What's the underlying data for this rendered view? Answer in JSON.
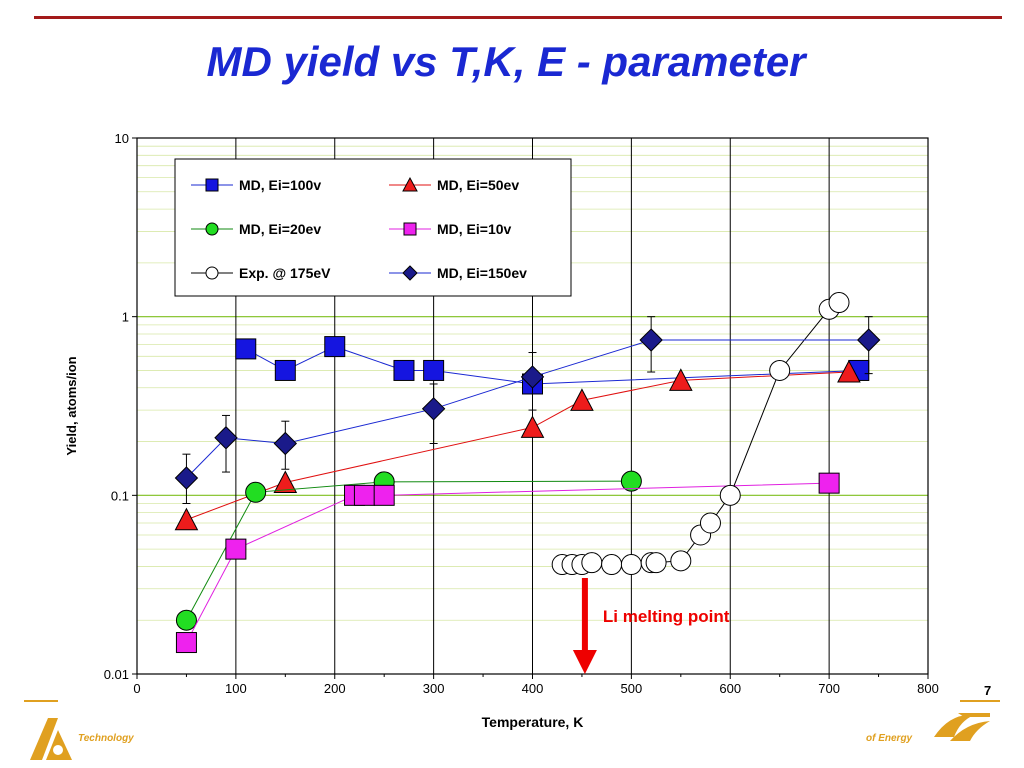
{
  "slide": {
    "title": "MD yield vs T,K, E - parameter",
    "page_number": "7",
    "footer_left_text": "Technology",
    "footer_right_text": "of Energy"
  },
  "colors": {
    "title": "#1a28d2",
    "rule": "#a31a1a",
    "footer_accent": "#e0a020",
    "gridline_horizontal": "#9acd32",
    "arrow": "#ee0000"
  },
  "chart_data": {
    "type": "scatter",
    "xlabel": "Temperature, K",
    "ylabel": "Yield, atoms/ion",
    "xlim": [
      0,
      800
    ],
    "ylim": [
      0.01,
      10
    ],
    "y_scale": "log",
    "x_ticks": [
      0,
      100,
      200,
      300,
      400,
      500,
      600,
      700,
      800
    ],
    "y_ticks": [
      0.01,
      0.1,
      1,
      10
    ],
    "y_tick_labels": [
      "0.01",
      "0.1",
      "1",
      "10"
    ],
    "grid": "vertical major lines every 100 K; horizontal minor gridlines at log steps",
    "legend_position": "top-left inside plot",
    "series": [
      {
        "name": "MD, Ei=100v",
        "marker": "square",
        "color": "#1515e0",
        "line_color": "#1a28d2",
        "x": [
          110,
          150,
          200,
          270,
          300,
          400,
          730
        ],
        "y": [
          0.66,
          0.5,
          0.68,
          0.5,
          0.5,
          0.42,
          0.5
        ]
      },
      {
        "name": "MD, Ei=50ev",
        "marker": "triangle",
        "color": "#ee1c1c",
        "line_color": "#e01010",
        "x": [
          50,
          150,
          400,
          450,
          550,
          720
        ],
        "y": [
          0.073,
          0.118,
          0.24,
          0.34,
          0.44,
          0.49
        ]
      },
      {
        "name": "MD, Ei=20ev",
        "marker": "circle",
        "color": "#22dd22",
        "line_color": "#108a10",
        "x": [
          50,
          120,
          250,
          500
        ],
        "y": [
          0.02,
          0.104,
          0.119,
          0.12
        ]
      },
      {
        "name": "MD, Ei=10v",
        "marker": "square",
        "color": "#ee22ee",
        "line_color": "#e020e0",
        "x": [
          50,
          100,
          220,
          230,
          250,
          700
        ],
        "y": [
          0.015,
          0.05,
          0.1,
          0.1,
          0.1,
          0.117
        ]
      },
      {
        "name": "Exp. @ 175eV",
        "marker": "circle-open",
        "color": "#ffffff",
        "line_color": "#000000",
        "x": [
          430,
          440,
          450,
          460,
          480,
          500,
          520,
          525,
          550,
          570,
          580,
          600,
          650,
          700,
          710
        ],
        "y": [
          0.041,
          0.041,
          0.041,
          0.042,
          0.041,
          0.041,
          0.042,
          0.042,
          0.043,
          0.06,
          0.07,
          0.1,
          0.5,
          1.1,
          1.2
        ]
      },
      {
        "name": "MD, Ei=150ev",
        "marker": "diamond",
        "color": "#1a1a8a",
        "line_color": "#1a28d2",
        "x": [
          50,
          90,
          150,
          300,
          400,
          520,
          740
        ],
        "y": [
          0.125,
          0.21,
          0.195,
          0.305,
          0.46,
          0.74,
          0.74
        ],
        "err_low": [
          0.09,
          0.135,
          0.14,
          0.195,
          0.3,
          0.49,
          0.48
        ],
        "err_high": [
          0.17,
          0.28,
          0.26,
          0.42,
          0.63,
          1.0,
          1.0
        ]
      }
    ],
    "annotation": {
      "text": "Li melting point",
      "arrow_x": 453,
      "color": "#ee0000"
    }
  }
}
